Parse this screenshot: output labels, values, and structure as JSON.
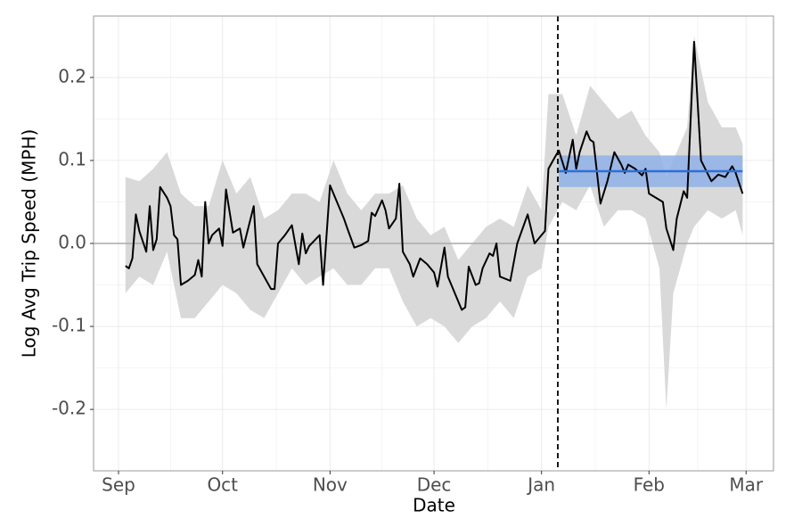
{
  "chart_data": {
    "type": "line",
    "xlabel": "Date",
    "ylabel": "Log Avg Trip Speed (MPH)",
    "xlim": [
      -7.2,
      188.9
    ],
    "xticks": [
      {
        "value": 0,
        "label": "Sep"
      },
      {
        "value": 30,
        "label": "Oct"
      },
      {
        "value": 61,
        "label": "Nov"
      },
      {
        "value": 91,
        "label": "Dec"
      },
      {
        "value": 122,
        "label": "Jan"
      },
      {
        "value": 153,
        "label": "Feb"
      },
      {
        "value": 181,
        "label": "Mar"
      }
    ],
    "ylim": [
      -0.274,
      0.274
    ],
    "yticks": [
      -0.2,
      -0.1,
      {
        "value": 0,
        "label": "0.0"
      },
      0.1,
      0.2
    ],
    "grid": true,
    "color": "#000000",
    "x": [
      2,
      3,
      4,
      5,
      6,
      8,
      9,
      10,
      11,
      12,
      14,
      15,
      16,
      17,
      18,
      20,
      22,
      23,
      24,
      25,
      26,
      27,
      29,
      30,
      31,
      33,
      35,
      36,
      39,
      40,
      42,
      44,
      45,
      46,
      48,
      50,
      52,
      53,
      54,
      55,
      58,
      59,
      61,
      63,
      65,
      66,
      68,
      70,
      72,
      73,
      74,
      76,
      77,
      78,
      80,
      81,
      82,
      84,
      85,
      87,
      89,
      91,
      92,
      94,
      95,
      97,
      99,
      100,
      101,
      103,
      104,
      105,
      107,
      108,
      109,
      110,
      113,
      115,
      118,
      120,
      123,
      124,
      126,
      127,
      129,
      131,
      132,
      133,
      135,
      136,
      137,
      139,
      141,
      143,
      145,
      146,
      147,
      149,
      151,
      152,
      153,
      157,
      158,
      160,
      161,
      163,
      164,
      166,
      168,
      171,
      173,
      175,
      177,
      178,
      180
    ],
    "values": [
      -0.027,
      -0.03,
      -0.018,
      0.035,
      0.015,
      -0.01,
      0.045,
      -0.008,
      0.005,
      0.068,
      0.055,
      0.045,
      0.01,
      0.005,
      -0.05,
      -0.045,
      -0.038,
      -0.02,
      -0.04,
      0.05,
      0,
      0.01,
      0.018,
      -0.003,
      0.065,
      0.013,
      0.018,
      -0.005,
      0.045,
      -0.025,
      -0.04,
      -0.055,
      -0.055,
      0,
      0.01,
      0.022,
      -0.025,
      0.012,
      -0.012,
      -0.003,
      0.01,
      -0.05,
      0.07,
      0.05,
      0.03,
      0.018,
      -0.005,
      -0.002,
      0.003,
      0.037,
      0.033,
      0.052,
      0.04,
      0.018,
      0.03,
      0.072,
      -0.01,
      -0.025,
      -0.04,
      -0.018,
      -0.025,
      -0.035,
      -0.052,
      -0.005,
      -0.04,
      -0.06,
      -0.08,
      -0.077,
      -0.028,
      -0.05,
      -0.048,
      -0.03,
      -0.012,
      -0.015,
      0,
      -0.04,
      -0.045,
      0,
      0.035,
      0,
      0.015,
      0.09,
      0.105,
      0.112,
      0.085,
      0.125,
      0.09,
      0.11,
      0.135,
      0.125,
      0.122,
      0.048,
      0.075,
      0.11,
      0.095,
      0.085,
      0.095,
      0.09,
      0.082,
      0.09,
      0.06,
      0.05,
      0.018,
      -0.008,
      0.03,
      0.063,
      0.055,
      0.243,
      0.1,
      0.075,
      0.083,
      0.08,
      0.093,
      0.085,
      0.06
    ],
    "band": {
      "color": "#d9d9d9",
      "x": [
        2,
        6,
        10,
        14,
        18,
        22,
        26,
        30,
        34,
        38,
        42,
        46,
        50,
        54,
        58,
        62,
        66,
        70,
        74,
        78,
        82,
        86,
        90,
        94,
        98,
        102,
        106,
        110,
        114,
        118,
        122,
        124,
        128,
        132,
        136,
        140,
        144,
        148,
        152,
        156,
        158,
        160,
        164,
        166,
        170,
        174,
        178,
        180
      ],
      "upper": [
        0.08,
        0.075,
        0.09,
        0.11,
        0.06,
        0.045,
        0.045,
        0.1,
        0.06,
        0.08,
        0.03,
        0.04,
        0.06,
        0.06,
        0.05,
        0.1,
        0.06,
        0.04,
        0.06,
        0.06,
        0.07,
        0.03,
        0.01,
        0.02,
        -0.02,
        0.0,
        0.02,
        0.03,
        0.02,
        0.07,
        0.04,
        0.18,
        0.18,
        0.13,
        0.19,
        0.17,
        0.15,
        0.16,
        0.13,
        0.11,
        0.08,
        0.1,
        0.14,
        0.25,
        0.17,
        0.14,
        0.14,
        0.12
      ],
      "lower": [
        -0.06,
        -0.04,
        -0.05,
        -0.01,
        -0.09,
        -0.09,
        -0.07,
        -0.05,
        -0.06,
        -0.08,
        -0.09,
        -0.06,
        -0.03,
        -0.05,
        -0.04,
        -0.03,
        -0.05,
        -0.05,
        -0.03,
        -0.03,
        -0.07,
        -0.1,
        -0.09,
        -0.1,
        -0.12,
        -0.1,
        -0.09,
        -0.07,
        -0.09,
        -0.04,
        -0.03,
        0.02,
        0.05,
        0.04,
        0.07,
        0.02,
        0.04,
        0.04,
        0.03,
        -0.03,
        -0.2,
        -0.06,
        0.0,
        0.02,
        0.04,
        0.03,
        0.04,
        0.01
      ]
    },
    "estimate": {
      "xlim": [
        127,
        180
      ],
      "value": 0.087,
      "lower": 0.068,
      "upper": 0.106,
      "color": "#2f6fd8",
      "band_color": "#8fb0e6"
    },
    "vline": 126.7,
    "hline": 0
  }
}
